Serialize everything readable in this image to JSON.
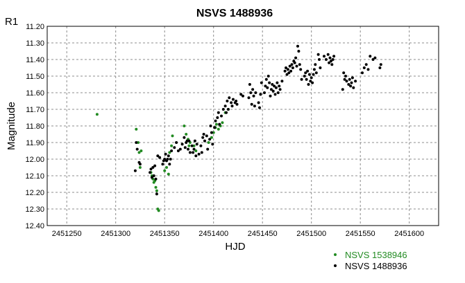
{
  "chart_data": {
    "type": "scatter",
    "title": "NSVS 1488936",
    "xlabel": "HJD",
    "ylabel": "Magnitude",
    "band_label": "R1",
    "xlim": [
      2451230,
      2451630
    ],
    "ylim": [
      11.2,
      12.4
    ],
    "y_inverted": true,
    "grid": true,
    "legend_position": "bottom-right",
    "x_ticks": [
      2451250,
      2451300,
      2451350,
      2451400,
      2451450,
      2451500,
      2451550,
      2451600
    ],
    "y_ticks": [
      11.2,
      11.3,
      11.4,
      11.5,
      11.6,
      11.7,
      11.8,
      11.9,
      12.0,
      12.1,
      12.2,
      12.3,
      12.4
    ],
    "series": [
      {
        "name": "NSVS 1538946",
        "color": "#228b22",
        "points": [
          [
            2451281,
            11.73
          ],
          [
            2451321,
            11.82
          ],
          [
            2451323,
            11.9
          ],
          [
            2451324,
            11.96
          ],
          [
            2451325,
            12.05
          ],
          [
            2451326,
            11.95
          ],
          [
            2451336,
            12.08
          ],
          [
            2451337,
            12.1
          ],
          [
            2451338,
            12.12
          ],
          [
            2451339,
            12.14
          ],
          [
            2451340,
            12.13
          ],
          [
            2451341,
            12.17
          ],
          [
            2451342,
            12.19
          ],
          [
            2451343,
            12.3
          ],
          [
            2451344,
            12.31
          ],
          [
            2451350,
            12.07
          ],
          [
            2451352,
            12.05
          ],
          [
            2451354,
            12.09
          ],
          [
            2451355,
            11.96
          ],
          [
            2451357,
            11.92
          ],
          [
            2451358,
            11.86
          ],
          [
            2451370,
            11.8
          ],
          [
            2451372,
            11.85
          ],
          [
            2451374,
            11.88
          ],
          [
            2451375,
            11.92
          ],
          [
            2451376,
            11.9
          ],
          [
            2451380,
            11.92
          ],
          [
            2451382,
            11.95
          ],
          [
            2451395,
            11.9
          ],
          [
            2451398,
            11.87
          ],
          [
            2451400,
            11.84
          ],
          [
            2451402,
            11.81
          ],
          [
            2451403,
            11.79
          ],
          [
            2451405,
            11.82
          ],
          [
            2451407,
            11.8
          ],
          [
            2451409,
            11.78
          ],
          [
            2451412,
            11.72
          ],
          [
            2451415,
            11.7
          ]
        ]
      },
      {
        "name": "NSVS 1488936",
        "color": "#000000",
        "points": [
          [
            2451320,
            12.07
          ],
          [
            2451321,
            11.9
          ],
          [
            2451322,
            11.94
          ],
          [
            2451324,
            12.02
          ],
          [
            2451325,
            12.03
          ],
          [
            2451335,
            12.08
          ],
          [
            2451336,
            12.06
          ],
          [
            2451337,
            12.11
          ],
          [
            2451338,
            12.05
          ],
          [
            2451339,
            12.1
          ],
          [
            2451340,
            12.04
          ],
          [
            2451341,
            12.12
          ],
          [
            2451342,
            12.21
          ],
          [
            2451343,
            11.98
          ],
          [
            2451345,
            11.99
          ],
          [
            2451348,
            12.03
          ],
          [
            2451349,
            12.01
          ],
          [
            2451350,
            12.0
          ],
          [
            2451351,
            11.97
          ],
          [
            2451352,
            12.01
          ],
          [
            2451353,
            12.0
          ],
          [
            2451354,
            11.98
          ],
          [
            2451355,
            12.03
          ],
          [
            2451356,
            12.0
          ],
          [
            2451357,
            11.95
          ],
          [
            2451360,
            11.93
          ],
          [
            2451362,
            11.9
          ],
          [
            2451364,
            11.95
          ],
          [
            2451366,
            11.94
          ],
          [
            2451368,
            11.91
          ],
          [
            2451370,
            11.87
          ],
          [
            2451371,
            11.93
          ],
          [
            2451372,
            11.9
          ],
          [
            2451373,
            11.89
          ],
          [
            2451374,
            11.94
          ],
          [
            2451375,
            11.89
          ],
          [
            2451376,
            11.96
          ],
          [
            2451378,
            11.92
          ],
          [
            2451379,
            11.96
          ],
          [
            2451380,
            11.94
          ],
          [
            2451381,
            11.89
          ],
          [
            2451382,
            11.98
          ],
          [
            2451383,
            11.91
          ],
          [
            2451385,
            11.97
          ],
          [
            2451387,
            11.92
          ],
          [
            2451388,
            11.96
          ],
          [
            2451389,
            11.87
          ],
          [
            2451390,
            11.85
          ],
          [
            2451391,
            11.89
          ],
          [
            2451393,
            11.86
          ],
          [
            2451394,
            11.94
          ],
          [
            2451396,
            11.88
          ],
          [
            2451397,
            11.8
          ],
          [
            2451398,
            11.84
          ],
          [
            2451399,
            11.91
          ],
          [
            2451401,
            11.81
          ],
          [
            2451402,
            11.77
          ],
          [
            2451404,
            11.75
          ],
          [
            2451405,
            11.72
          ],
          [
            2451406,
            11.79
          ],
          [
            2451408,
            11.74
          ],
          [
            2451410,
            11.7
          ],
          [
            2451412,
            11.68
          ],
          [
            2451413,
            11.72
          ],
          [
            2451414,
            11.65
          ],
          [
            2451415,
            11.7
          ],
          [
            2451416,
            11.63
          ],
          [
            2451418,
            11.66
          ],
          [
            2451419,
            11.68
          ],
          [
            2451420,
            11.64
          ],
          [
            2451422,
            11.66
          ],
          [
            2451423,
            11.65
          ],
          [
            2451424,
            11.67
          ],
          [
            2451428,
            11.61
          ],
          [
            2451430,
            11.62
          ],
          [
            2451436,
            11.63
          ],
          [
            2451437,
            11.55
          ],
          [
            2451438,
            11.6
          ],
          [
            2451439,
            11.67
          ],
          [
            2451440,
            11.58
          ],
          [
            2451441,
            11.62
          ],
          [
            2451442,
            11.68
          ],
          [
            2451443,
            11.6
          ],
          [
            2451446,
            11.66
          ],
          [
            2451447,
            11.69
          ],
          [
            2451448,
            11.61
          ],
          [
            2451449,
            11.54
          ],
          [
            2451452,
            11.6
          ],
          [
            2451453,
            11.56
          ],
          [
            2451454,
            11.52
          ],
          [
            2451455,
            11.57
          ],
          [
            2451456,
            11.5
          ],
          [
            2451457,
            11.54
          ],
          [
            2451458,
            11.62
          ],
          [
            2451459,
            11.58
          ],
          [
            2451460,
            11.55
          ],
          [
            2451461,
            11.59
          ],
          [
            2451462,
            11.56
          ],
          [
            2451463,
            11.61
          ],
          [
            2451464,
            11.57
          ],
          [
            2451465,
            11.54
          ],
          [
            2451466,
            11.6
          ],
          [
            2451467,
            11.56
          ],
          [
            2451468,
            11.58
          ],
          [
            2451470,
            11.53
          ],
          [
            2451473,
            11.47
          ],
          [
            2451474,
            11.45
          ],
          [
            2451475,
            11.49
          ],
          [
            2451476,
            11.46
          ],
          [
            2451477,
            11.48
          ],
          [
            2451478,
            11.44
          ],
          [
            2451479,
            11.47
          ],
          [
            2451480,
            11.43
          ],
          [
            2451481,
            11.45
          ],
          [
            2451482,
            11.41
          ],
          [
            2451483,
            11.42
          ],
          [
            2451484,
            11.39
          ],
          [
            2451485,
            11.44
          ],
          [
            2451486,
            11.32
          ],
          [
            2451487,
            11.35
          ],
          [
            2451488,
            11.43
          ],
          [
            2451489,
            11.46
          ],
          [
            2451490,
            11.52
          ],
          [
            2451493,
            11.5
          ],
          [
            2451494,
            11.48
          ],
          [
            2451495,
            11.52
          ],
          [
            2451496,
            11.47
          ],
          [
            2451497,
            11.55
          ],
          [
            2451498,
            11.49
          ],
          [
            2451499,
            11.53
          ],
          [
            2451500,
            11.51
          ],
          [
            2451501,
            11.54
          ],
          [
            2451502,
            11.49
          ],
          [
            2451503,
            11.46
          ],
          [
            2451504,
            11.43
          ],
          [
            2451505,
            11.48
          ],
          [
            2451507,
            11.37
          ],
          [
            2451508,
            11.4
          ],
          [
            2451509,
            11.45
          ],
          [
            2451513,
            11.38
          ],
          [
            2451515,
            11.4
          ],
          [
            2451517,
            11.37
          ],
          [
            2451518,
            11.42
          ],
          [
            2451519,
            11.39
          ],
          [
            2451520,
            11.41
          ],
          [
            2451521,
            11.43
          ],
          [
            2451522,
            11.4
          ],
          [
            2451523,
            11.38
          ],
          [
            2451532,
            11.58
          ],
          [
            2451533,
            11.48
          ],
          [
            2451534,
            11.52
          ],
          [
            2451535,
            11.5
          ],
          [
            2451536,
            11.53
          ],
          [
            2451538,
            11.55
          ],
          [
            2451539,
            11.52
          ],
          [
            2451540,
            11.56
          ],
          [
            2451541,
            11.54
          ],
          [
            2451542,
            11.51
          ],
          [
            2451543,
            11.57
          ],
          [
            2451545,
            11.53
          ],
          [
            2451552,
            11.48
          ],
          [
            2451554,
            11.45
          ],
          [
            2451556,
            11.43
          ],
          [
            2451558,
            11.46
          ],
          [
            2451560,
            11.38
          ],
          [
            2451563,
            11.4
          ],
          [
            2451565,
            11.39
          ],
          [
            2451570,
            11.45
          ],
          [
            2451571,
            11.43
          ]
        ]
      }
    ]
  }
}
